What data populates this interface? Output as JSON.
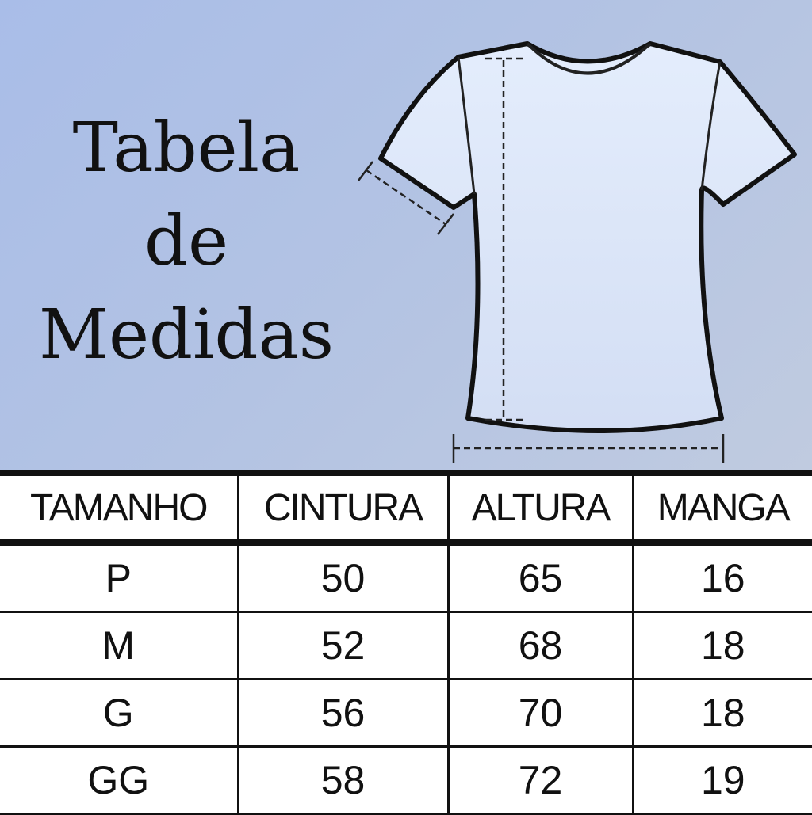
{
  "title": {
    "line1": "Tabela",
    "line2": "de",
    "line3": "Medidas"
  },
  "colors": {
    "background": "#aebfe4",
    "shirt": "#dde8fa",
    "outline": "#111111"
  },
  "table": {
    "headers": [
      "TAMANHO",
      "CINTURA",
      "ALTURA",
      "MANGA"
    ],
    "rows": [
      [
        "P",
        "50",
        "65",
        "16"
      ],
      [
        "M",
        "52",
        "68",
        "18"
      ],
      [
        "G",
        "56",
        "70",
        "18"
      ],
      [
        "GG",
        "58",
        "72",
        "19"
      ]
    ]
  }
}
